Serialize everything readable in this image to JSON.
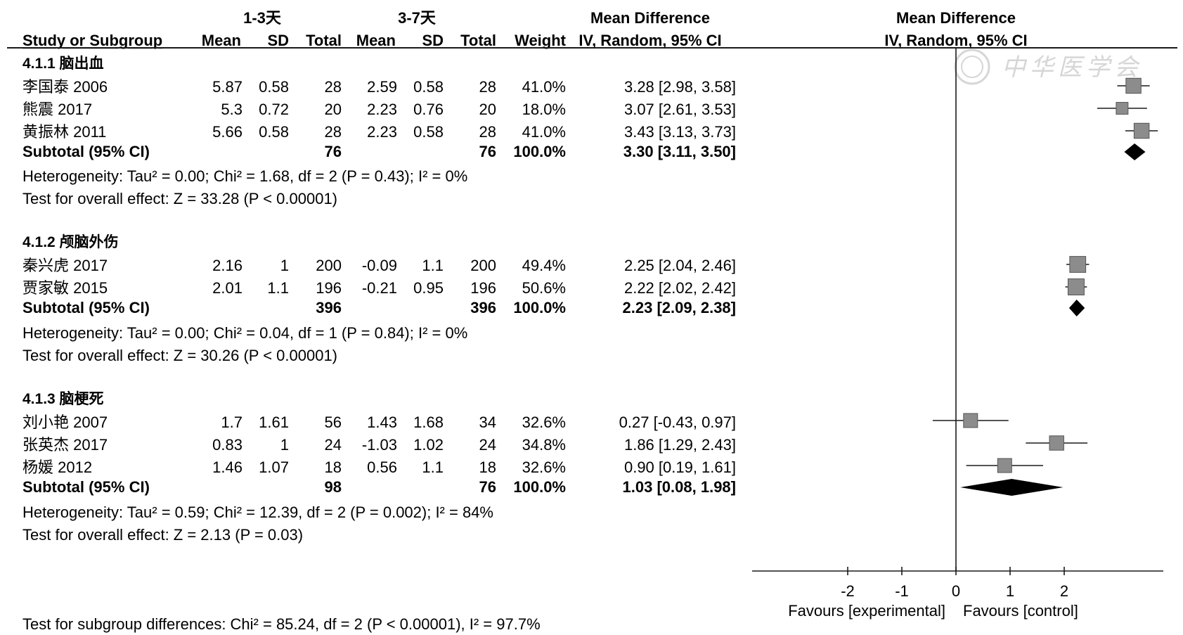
{
  "chart_data": {
    "type": "forest",
    "headers": {
      "group1": "1-3天",
      "group2": "3-7天",
      "md_left": "Mean Difference",
      "md_left_sub": "IV, Random, 95% CI",
      "md_right": "Mean Difference",
      "md_right_sub": "IV, Random, 95% CI",
      "study": "Study or Subgroup",
      "mean1": "Mean",
      "sd1": "SD",
      "total1": "Total",
      "mean2": "Mean",
      "sd2": "SD",
      "total2": "Total",
      "weight": "Weight"
    },
    "subgroups": [
      {
        "label": "4.1.1 脑出血",
        "studies": [
          {
            "name": "李国泰 2006",
            "mean1": "5.87",
            "sd1": "0.58",
            "total1": "28",
            "mean2": "2.59",
            "sd2": "0.58",
            "total2": "28",
            "weight": "41.0%",
            "ci_text": "3.28 [2.98, 3.58]",
            "md": 3.28,
            "lo": 2.98,
            "hi": 3.58,
            "w": 41.0
          },
          {
            "name": "熊震 2017",
            "mean1": "5.3",
            "sd1": "0.72",
            "total1": "20",
            "mean2": "2.23",
            "sd2": "0.76",
            "total2": "20",
            "weight": "18.0%",
            "ci_text": "3.07 [2.61, 3.53]",
            "md": 3.07,
            "lo": 2.61,
            "hi": 3.53,
            "w": 18.0
          },
          {
            "name": "黄振林 2011",
            "mean1": "5.66",
            "sd1": "0.58",
            "total1": "28",
            "mean2": "2.23",
            "sd2": "0.58",
            "total2": "28",
            "weight": "41.0%",
            "ci_text": "3.43 [3.13, 3.73]",
            "md": 3.43,
            "lo": 3.13,
            "hi": 3.73,
            "w": 41.0
          }
        ],
        "subtotal": {
          "label": "Subtotal (95% CI)",
          "total1": "76",
          "total2": "76",
          "weight": "100.0%",
          "ci_text": "3.30 [3.11, 3.50]",
          "md": 3.3,
          "lo": 3.11,
          "hi": 3.5
        },
        "heterogeneity": "Heterogeneity: Tau² = 0.00; Chi² = 1.68, df = 2 (P = 0.43); I² = 0%",
        "overall": "Test for overall effect: Z = 33.28 (P < 0.00001)"
      },
      {
        "label": "4.1.2 颅脑外伤",
        "studies": [
          {
            "name": "秦兴虎 2017",
            "mean1": "2.16",
            "sd1": "1",
            "total1": "200",
            "mean2": "-0.09",
            "sd2": "1.1",
            "total2": "200",
            "weight": "49.4%",
            "ci_text": "2.25 [2.04, 2.46]",
            "md": 2.25,
            "lo": 2.04,
            "hi": 2.46,
            "w": 49.4
          },
          {
            "name": "贾家敏 2015",
            "mean1": "2.01",
            "sd1": "1.1",
            "total1": "196",
            "mean2": "-0.21",
            "sd2": "0.95",
            "total2": "196",
            "weight": "50.6%",
            "ci_text": "2.22 [2.02, 2.42]",
            "md": 2.22,
            "lo": 2.02,
            "hi": 2.42,
            "w": 50.6
          }
        ],
        "subtotal": {
          "label": "Subtotal (95% CI)",
          "total1": "396",
          "total2": "396",
          "weight": "100.0%",
          "ci_text": "2.23 [2.09, 2.38]",
          "md": 2.23,
          "lo": 2.09,
          "hi": 2.38
        },
        "heterogeneity": "Heterogeneity: Tau² = 0.00; Chi² = 0.04, df = 1 (P = 0.84); I² = 0%",
        "overall": "Test for overall effect: Z = 30.26 (P < 0.00001)"
      },
      {
        "label": "4.1.3 脑梗死",
        "studies": [
          {
            "name": "刘小艳 2007",
            "mean1": "1.7",
            "sd1": "1.61",
            "total1": "56",
            "mean2": "1.43",
            "sd2": "1.68",
            "total2": "34",
            "weight": "32.6%",
            "ci_text": "0.27 [-0.43, 0.97]",
            "md": 0.27,
            "lo": -0.43,
            "hi": 0.97,
            "w": 32.6
          },
          {
            "name": "张英杰 2017",
            "mean1": "0.83",
            "sd1": "1",
            "total1": "24",
            "mean2": "-1.03",
            "sd2": "1.02",
            "total2": "24",
            "weight": "34.8%",
            "ci_text": "1.86 [1.29, 2.43]",
            "md": 1.86,
            "lo": 1.29,
            "hi": 2.43,
            "w": 34.8
          },
          {
            "name": "杨媛 2012",
            "mean1": "1.46",
            "sd1": "1.07",
            "total1": "18",
            "mean2": "0.56",
            "sd2": "1.1",
            "total2": "18",
            "weight": "32.6%",
            "ci_text": "0.90 [0.19, 1.61]",
            "md": 0.9,
            "lo": 0.19,
            "hi": 1.61,
            "w": 32.6
          }
        ],
        "subtotal": {
          "label": "Subtotal (95% CI)",
          "total1": "98",
          "total2": "76",
          "weight": "100.0%",
          "ci_text": "1.03 [0.08, 1.98]",
          "md": 1.03,
          "lo": 0.08,
          "hi": 1.98
        },
        "heterogeneity": "Heterogeneity: Tau² = 0.59; Chi² = 12.39, df = 2 (P = 0.002); I² = 84%",
        "overall": "Test for overall effect: Z = 2.13 (P = 0.03)"
      }
    ],
    "axis": {
      "ticks": [
        -2,
        -1,
        0,
        1,
        2
      ],
      "tick_labels": [
        "-2",
        "-1",
        "0",
        "1",
        "2"
      ],
      "xlim": [
        -3.8,
        3.8
      ],
      "favours_left": "Favours [experimental]",
      "favours_right": "Favours [control]"
    },
    "subgroup_test": "Test for subgroup differences: Chi² = 85.24, df = 2 (P < 0.00001), I² = 97.7%",
    "watermark": "中华医学会"
  },
  "colors": {
    "text": "#1a1a1a",
    "square_fill": "#8c8c8c",
    "square_stroke": "#555555",
    "diamond": "#000000",
    "watermark": "#d2d2d2"
  }
}
